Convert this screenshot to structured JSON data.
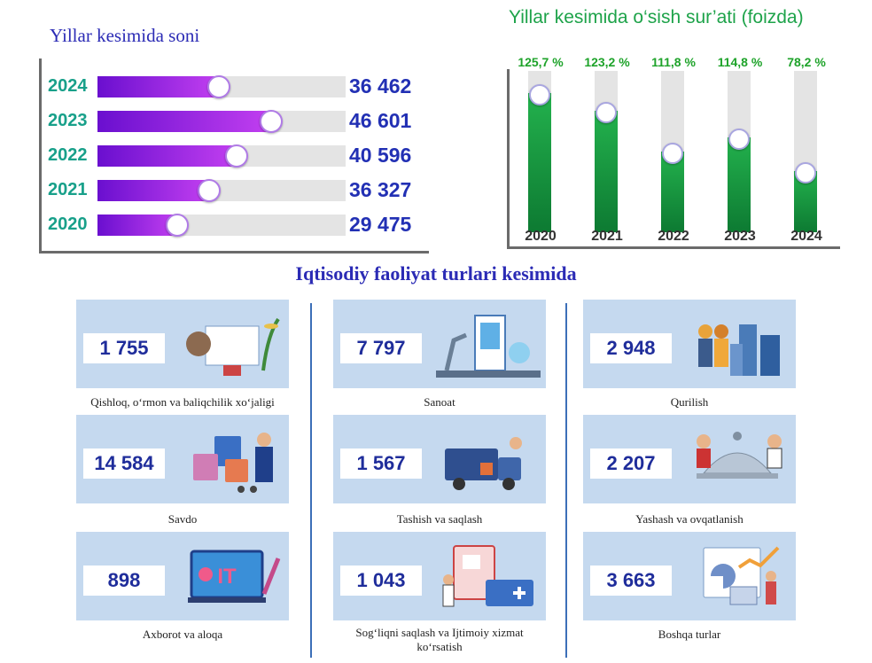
{
  "chart_data": [
    {
      "type": "bar",
      "orientation": "horizontal",
      "title": "Yillar kesimida soni",
      "categories": [
        "2024",
        "2023",
        "2022",
        "2021",
        "2020"
      ],
      "values": [
        36462,
        46601,
        40596,
        36327,
        29475
      ],
      "value_labels": [
        "36 462",
        "46 601",
        "40 596",
        "36 327",
        "29 475"
      ],
      "fill_fraction": [
        0.49,
        0.7,
        0.56,
        0.45,
        0.32
      ],
      "colors": {
        "bar": "#8a2be2",
        "track": "#e4e4e4",
        "year": "#18a08a",
        "value": "#2230b4"
      }
    },
    {
      "type": "bar",
      "orientation": "vertical",
      "title": "Yillar kesimida o‘sish sur’ati (foizda)",
      "categories": [
        "2020",
        "2021",
        "2022",
        "2023",
        "2024"
      ],
      "values": [
        125.7,
        123.2,
        111.8,
        114.8,
        78.2
      ],
      "value_labels": [
        "125,7 %",
        "123,2 %",
        "111,8 %",
        "114,8 %",
        "78,2 %"
      ],
      "fill_fraction": [
        0.86,
        0.75,
        0.5,
        0.59,
        0.38
      ],
      "colors": {
        "bar": "#1a9a3e",
        "track": "#e4e4e4",
        "label": "#1ea32a"
      }
    }
  ],
  "sectors": {
    "title": "Iqtisodiy faoliyat turlari kesimida",
    "items": [
      {
        "value": "1 755",
        "label": "Qishloq, o‘rmon va baliqchilik xo‘jaligi",
        "icon": "agriculture-icon"
      },
      {
        "value": "7 797",
        "label": "Sanoat",
        "icon": "industry-icon"
      },
      {
        "value": "2 948",
        "label": "Qurilish",
        "icon": "construction-icon"
      },
      {
        "value": "14 584",
        "label": "Savdo",
        "icon": "shopping-icon"
      },
      {
        "value": "1 567",
        "label": "Tashish va saqlash",
        "icon": "truck-icon"
      },
      {
        "value": "2 207",
        "label": "Yashash va ovqatlanish",
        "icon": "catering-icon"
      },
      {
        "value": "898",
        "label": "Axborot va aloqa",
        "icon": "it-icon"
      },
      {
        "value": "1 043",
        "label": "Sog‘liqni saqlash va Ijtimoiy xizmat ko‘rsatish",
        "icon": "health-icon"
      },
      {
        "value": "3 663",
        "label": "Boshqa turlar",
        "icon": "analytics-icon"
      }
    ]
  }
}
